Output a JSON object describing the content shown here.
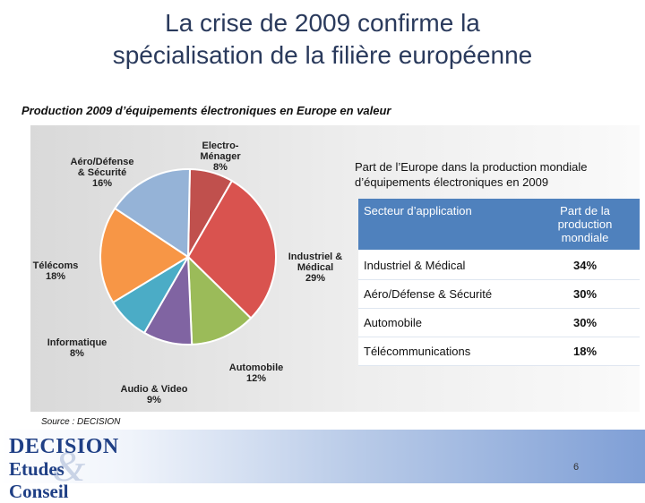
{
  "title_line1": "La crise de 2009 confirme la",
  "title_line2": "spécialisation de la filière européenne",
  "subtitle": "Production 2009 d’équipements électroniques en Europe en valeur",
  "chart_data": {
    "type": "pie",
    "slices": [
      {
        "label_lines": [
          "Electro-",
          "Ménager",
          "8%"
        ],
        "value": 8,
        "color": "#c0504d"
      },
      {
        "label_lines": [
          "Industriel &",
          "Médical",
          "29%"
        ],
        "value": 29,
        "color": "#d9534f"
      },
      {
        "label_lines": [
          "Automobile",
          "12%"
        ],
        "value": 12,
        "color": "#9bbb59"
      },
      {
        "label_lines": [
          "Audio & Video",
          "9%"
        ],
        "value": 9,
        "color": "#8064a2"
      },
      {
        "label_lines": [
          "Informatique",
          "8%"
        ],
        "value": 8,
        "color": "#4bacc6"
      },
      {
        "label_lines": [
          "Télécoms",
          "18%"
        ],
        "value": 18,
        "color": "#f79646"
      },
      {
        "label_lines": [
          "Aéro/Défense",
          "& Sécurité",
          "16%"
        ],
        "value": 16,
        "color": "#95b3d7"
      }
    ],
    "legend": "none"
  },
  "table": {
    "caption": "Part de l’Europe dans la production mondiale d’équipements électroniques en 2009",
    "headers": [
      "Secteur d’application",
      "Part de la production mondiale"
    ],
    "rows": [
      {
        "sector": "Industriel & Médical",
        "share": "34%"
      },
      {
        "sector": "Aéro/Défense & Sécurité",
        "share": "30%"
      },
      {
        "sector": "Automobile",
        "share": "30%"
      },
      {
        "sector": "Télécommunications",
        "share": "18%"
      }
    ]
  },
  "source": "Source : DECISION",
  "logo": {
    "line1": "DECISION",
    "line2": "Etudes Conseil",
    "symbol": "&"
  },
  "page_number": "6"
}
